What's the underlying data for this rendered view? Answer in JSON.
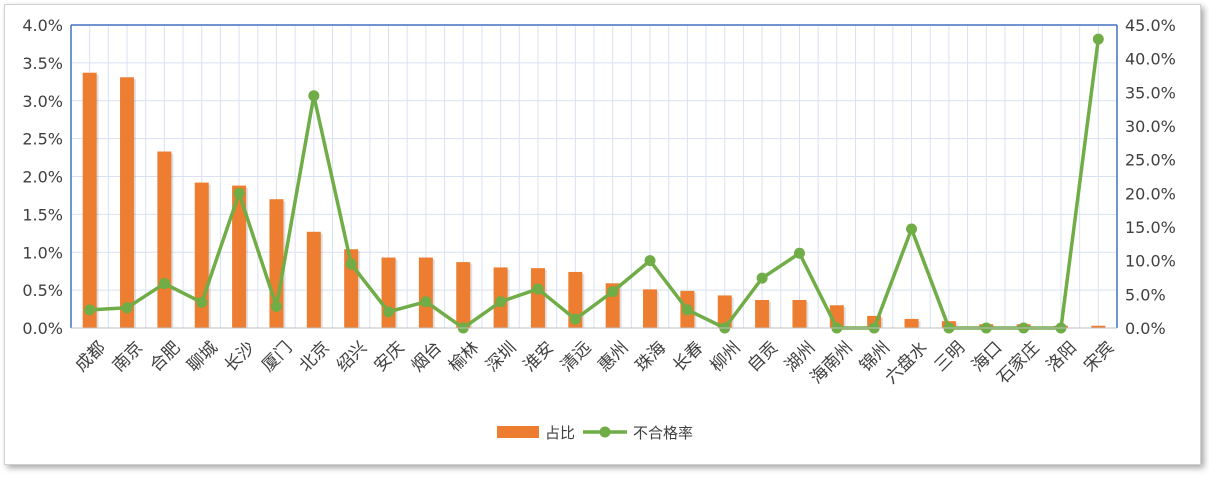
{
  "chart_data": {
    "type": "bar",
    "categories": [
      "成都",
      "南京",
      "合肥",
      "聊城",
      "长沙",
      "厦门",
      "北京",
      "绍兴",
      "安庆",
      "烟台",
      "榆林",
      "深圳",
      "淮安",
      "清远",
      "惠州",
      "珠海",
      "长春",
      "柳州",
      "自贡",
      "湖州",
      "海南州",
      "锦州",
      "六盘水",
      "三明",
      "海口",
      "石家庄",
      "洛阳",
      "宋宾"
    ],
    "series": [
      {
        "name": "占比",
        "chart": "bar",
        "axis": "left",
        "color": "#ED7D31",
        "values": [
          3.37,
          3.31,
          2.33,
          1.92,
          1.88,
          1.7,
          1.27,
          1.04,
          0.93,
          0.93,
          0.87,
          0.8,
          0.79,
          0.74,
          0.59,
          0.51,
          0.49,
          0.43,
          0.37,
          0.37,
          0.3,
          0.16,
          0.12,
          0.09,
          0.05,
          0.05,
          0.03,
          0.03
        ]
      },
      {
        "name": "不合格率",
        "chart": "line",
        "axis": "right",
        "color": "#70AD47",
        "values": [
          2.7,
          3.0,
          6.6,
          3.8,
          20.0,
          3.2,
          34.5,
          9.5,
          2.4,
          3.9,
          0.0,
          3.9,
          5.8,
          1.3,
          5.4,
          10.0,
          2.7,
          0.0,
          7.4,
          11.1,
          0.0,
          0.0,
          14.7,
          0.0,
          0.0,
          0.0,
          0.0,
          42.9
        ]
      }
    ],
    "y_left": {
      "min": 0,
      "max": 4.0,
      "step": 0.5,
      "format": "percent_1dp"
    },
    "y_right": {
      "min": 0,
      "max": 45.0,
      "step": 5.0,
      "format": "percent_1dp"
    },
    "grid": true,
    "legend_position": "bottom",
    "axis_color": "#4472C4",
    "grid_color": "#D9E1F2"
  }
}
